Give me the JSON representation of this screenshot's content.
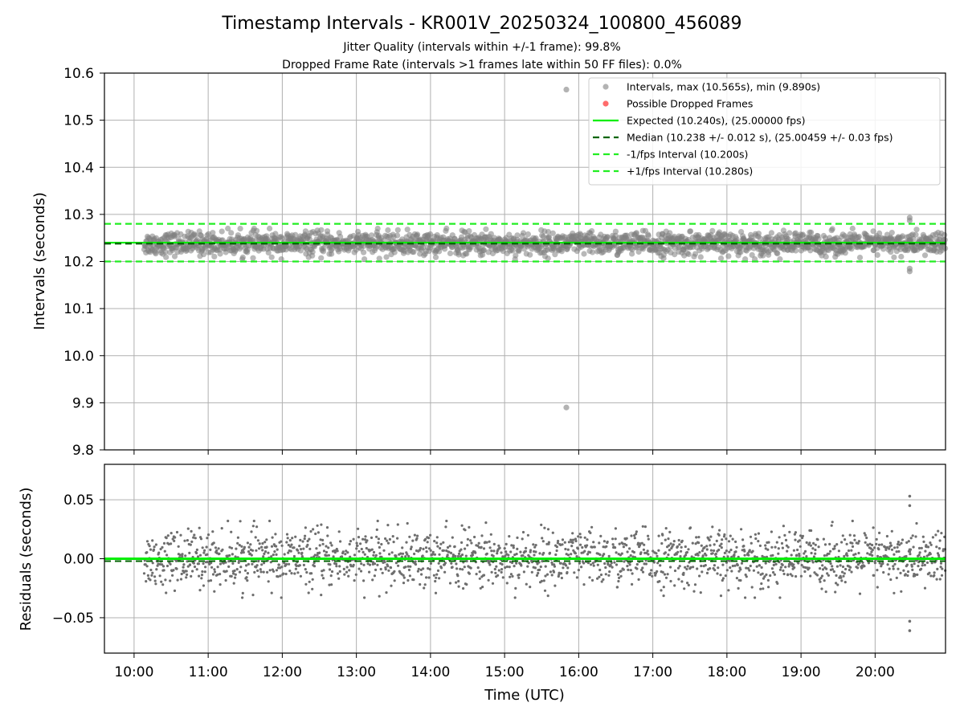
{
  "header": {
    "title": "Timestamp Intervals - KR001V_20250324_100800_456089",
    "subtitle_1": "Jitter Quality (intervals within +/-1 frame): 99.8%",
    "subtitle_2": "Dropped Frame Rate (intervals >1 frames late within 50 FF files): 0.0%"
  },
  "colors": {
    "points": "#808080",
    "dropped": "#ff3b3b",
    "expected": "#00ee00",
    "median": "#006400",
    "bounds": "#22ee22",
    "grid": "#b0b0b0"
  },
  "chart_data": [
    {
      "type": "scatter",
      "panel": "intervals",
      "ylabel": "Intervals (seconds)",
      "xlabel": "",
      "xlim": [
        "09:36",
        "20:57"
      ],
      "ylim": [
        9.8,
        10.6
      ],
      "yticks": [
        "9.8",
        "9.9",
        "10.0",
        "10.1",
        "10.2",
        "10.3",
        "10.4",
        "10.5",
        "10.6"
      ],
      "xticks": [
        "10:00",
        "11:00",
        "12:00",
        "13:00",
        "14:00",
        "15:00",
        "16:00",
        "17:00",
        "18:00",
        "19:00",
        "20:00"
      ],
      "grid": true,
      "legend_position": "top-right",
      "series": [
        {
          "name": "Intervals, max (10.565s), min (9.890s)",
          "kind": "points",
          "t_start": "10:08",
          "t_end": "20:57",
          "center": 10.238,
          "spread": 0.012,
          "outliers": [
            {
              "t": "15:50",
              "y": 10.565
            },
            {
              "t": "15:50",
              "y": 9.89
            },
            {
              "t": "20:28",
              "y": 10.293
            },
            {
              "t": "20:28",
              "y": 10.287
            },
            {
              "t": "20:28",
              "y": 10.185
            },
            {
              "t": "20:28",
              "y": 10.179
            }
          ]
        },
        {
          "name": "Possible Dropped Frames",
          "kind": "points",
          "values": []
        },
        {
          "name": "Expected (10.240s), (25.00000 fps)",
          "kind": "hline",
          "y": 10.24
        },
        {
          "name": "Median (10.238 +/- 0.012 s), (25.00459 +/- 0.03 fps)",
          "kind": "hline",
          "y": 10.238
        },
        {
          "name": "-1/fps Interval (10.200s)",
          "kind": "hline",
          "y": 10.2
        },
        {
          "name": "+1/fps Interval (10.280s)",
          "kind": "hline",
          "y": 10.28
        }
      ]
    },
    {
      "type": "scatter",
      "panel": "residuals",
      "ylabel": "Residuals (seconds)",
      "xlabel": "Time (UTC)",
      "xlim": [
        "09:36",
        "20:57"
      ],
      "ylim": [
        -0.08,
        0.08
      ],
      "yticks": [
        "−0.05",
        "0.00",
        "0.05"
      ],
      "ytick_values": [
        -0.05,
        0.0,
        0.05
      ],
      "xticks": [
        "10:00",
        "11:00",
        "12:00",
        "13:00",
        "14:00",
        "15:00",
        "16:00",
        "17:00",
        "18:00",
        "19:00",
        "20:00"
      ],
      "grid": true,
      "series": [
        {
          "kind": "points",
          "t_start": "10:08",
          "t_end": "20:57",
          "center": 0.0,
          "spread": 0.012,
          "outliers": [
            {
              "t": "20:28",
              "y": 0.053
            },
            {
              "t": "20:28",
              "y": 0.045
            },
            {
              "t": "20:28",
              "y": -0.053
            },
            {
              "t": "20:28",
              "y": -0.061
            }
          ]
        },
        {
          "kind": "hline",
          "y": 0.0,
          "style": "expected"
        },
        {
          "kind": "hline",
          "y": -0.002,
          "style": "median"
        }
      ]
    }
  ]
}
